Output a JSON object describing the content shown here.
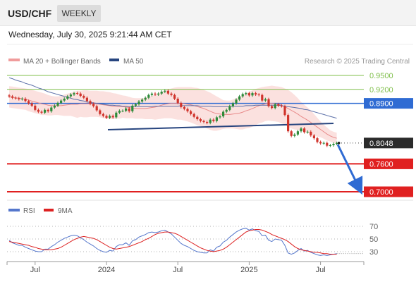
{
  "header": {
    "symbol": "USD/CHF",
    "timeframe": "WEEKLY",
    "datetime": "Wednesday, July 30, 2025 9:21:44 AM CET"
  },
  "legend": {
    "bollinger": "MA 20 + Bollinger Bands",
    "ma50": "MA 50",
    "credit": "Research © 2025 Trading Central"
  },
  "levels": [
    {
      "value": 0.95,
      "label": "0.9500",
      "style": "resistance-green"
    },
    {
      "value": 0.92,
      "label": "0.9200",
      "style": "resistance-green"
    },
    {
      "value": 0.89,
      "label": "0.8900",
      "style": "pivot-blue"
    },
    {
      "value": 0.8048,
      "label": "0.8048",
      "style": "last-price"
    },
    {
      "value": 0.76,
      "label": "0.7600",
      "style": "support-red"
    },
    {
      "value": 0.7,
      "label": "0.7000",
      "style": "support-red"
    }
  ],
  "rsi_legend": {
    "rsi": "RSI",
    "ma": "9MA"
  },
  "rsi_levels": [
    {
      "value": 70,
      "label": "70"
    },
    {
      "value": 50,
      "label": "50"
    },
    {
      "value": 30,
      "label": "30"
    }
  ],
  "x_labels": [
    "Jul",
    "2024",
    "Jul",
    "2025",
    "Jul"
  ],
  "colors": {
    "up": "#2e8b3a",
    "down": "#d0342c",
    "ma20": "#e88a8a",
    "band": "#f7c9c4",
    "ma50": "#5b6fa8",
    "green": "#7fbf4a",
    "blue": "#2f6bd3",
    "red": "#e02020",
    "trend": "#27457f",
    "rsi": "#5577cc",
    "rsi_ma": "#dd2222"
  },
  "chart_data": {
    "type": "candlestick",
    "timeframe": "weekly",
    "symbol": "USD/CHF",
    "ylim": [
      0.7,
      0.96
    ],
    "last_price": 0.8048,
    "x_ticks": [
      "Jul",
      "2024",
      "Jul",
      "2025",
      "Jul"
    ],
    "close": [
      0.905,
      0.902,
      0.901,
      0.899,
      0.9,
      0.895,
      0.89,
      0.885,
      0.876,
      0.872,
      0.87,
      0.876,
      0.873,
      0.881,
      0.885,
      0.891,
      0.896,
      0.9,
      0.905,
      0.909,
      0.912,
      0.911,
      0.906,
      0.902,
      0.895,
      0.889,
      0.884,
      0.875,
      0.867,
      0.863,
      0.859,
      0.863,
      0.86,
      0.87,
      0.874,
      0.874,
      0.879,
      0.873,
      0.885,
      0.888,
      0.894,
      0.898,
      0.902,
      0.908,
      0.911,
      0.909,
      0.911,
      0.915,
      0.917,
      0.911,
      0.908,
      0.9,
      0.891,
      0.882,
      0.878,
      0.873,
      0.867,
      0.861,
      0.856,
      0.852,
      0.85,
      0.848,
      0.855,
      0.852,
      0.86,
      0.862,
      0.872,
      0.876,
      0.884,
      0.89,
      0.898,
      0.905,
      0.91,
      0.912,
      0.907,
      0.912,
      0.909,
      0.908,
      0.896,
      0.899,
      0.884,
      0.88,
      0.888,
      0.885,
      0.884,
      0.865,
      0.83,
      0.82,
      0.823,
      0.83,
      0.836,
      0.828,
      0.829,
      0.821,
      0.815,
      0.807,
      0.804,
      0.805,
      0.799,
      0.8,
      0.803,
      0.8048
    ],
    "ma20": [
      0.904,
      0.903,
      0.902,
      0.901,
      0.9,
      0.899,
      0.897,
      0.895,
      0.893,
      0.891,
      0.889,
      0.888,
      0.886,
      0.885,
      0.885,
      0.885,
      0.885,
      0.886,
      0.887,
      0.888,
      0.888,
      0.888,
      0.889,
      0.889,
      0.889,
      0.889,
      0.889,
      0.889,
      0.888,
      0.887,
      0.886,
      0.885,
      0.884,
      0.884,
      0.883,
      0.883,
      0.882,
      0.881,
      0.88,
      0.879,
      0.879,
      0.879,
      0.879,
      0.88,
      0.881,
      0.882,
      0.884,
      0.886,
      0.888,
      0.889,
      0.89,
      0.89,
      0.89,
      0.89,
      0.889,
      0.888,
      0.887,
      0.885,
      0.883,
      0.881,
      0.879,
      0.876,
      0.873,
      0.87,
      0.868,
      0.867,
      0.866,
      0.866,
      0.866,
      0.867,
      0.868,
      0.869,
      0.871,
      0.874,
      0.876,
      0.879,
      0.882,
      0.885,
      0.887,
      0.889,
      0.89,
      0.89,
      0.889,
      0.888,
      0.886,
      0.883,
      0.879,
      0.875,
      0.871,
      0.867,
      0.862,
      0.858,
      0.854,
      0.849,
      0.844,
      0.839,
      0.834,
      0.829,
      0.824,
      0.82,
      0.817,
      0.815
    ],
    "bb_upper": [
      0.927,
      0.926,
      0.925,
      0.924,
      0.923,
      0.922,
      0.921,
      0.919,
      0.917,
      0.915,
      0.913,
      0.911,
      0.908,
      0.906,
      0.905,
      0.905,
      0.906,
      0.909,
      0.911,
      0.913,
      0.915,
      0.917,
      0.917,
      0.918,
      0.918,
      0.917,
      0.917,
      0.917,
      0.916,
      0.916,
      0.915,
      0.914,
      0.912,
      0.911,
      0.909,
      0.907,
      0.906,
      0.904,
      0.902,
      0.901,
      0.901,
      0.901,
      0.902,
      0.904,
      0.906,
      0.909,
      0.912,
      0.915,
      0.918,
      0.92,
      0.922,
      0.924,
      0.925,
      0.925,
      0.925,
      0.925,
      0.925,
      0.924,
      0.923,
      0.921,
      0.919,
      0.916,
      0.913,
      0.909,
      0.905,
      0.901,
      0.897,
      0.896,
      0.896,
      0.898,
      0.901,
      0.904,
      0.908,
      0.912,
      0.915,
      0.918,
      0.921,
      0.923,
      0.925,
      0.926,
      0.927,
      0.928,
      0.927,
      0.926,
      0.925,
      0.922,
      0.919,
      0.914,
      0.908,
      0.901,
      0.893,
      0.887,
      0.881,
      0.875,
      0.867,
      0.859,
      0.851,
      0.844,
      0.838,
      0.832,
      0.829,
      0.827
    ],
    "bb_lower": [
      0.881,
      0.88,
      0.879,
      0.878,
      0.877,
      0.876,
      0.873,
      0.871,
      0.869,
      0.867,
      0.865,
      0.865,
      0.864,
      0.864,
      0.865,
      0.865,
      0.864,
      0.863,
      0.863,
      0.863,
      0.861,
      0.859,
      0.861,
      0.86,
      0.86,
      0.861,
      0.861,
      0.861,
      0.86,
      0.858,
      0.857,
      0.856,
      0.856,
      0.857,
      0.857,
      0.859,
      0.858,
      0.858,
      0.858,
      0.857,
      0.857,
      0.857,
      0.856,
      0.856,
      0.856,
      0.855,
      0.856,
      0.857,
      0.858,
      0.858,
      0.858,
      0.856,
      0.855,
      0.855,
      0.853,
      0.851,
      0.849,
      0.846,
      0.843,
      0.841,
      0.839,
      0.836,
      0.833,
      0.831,
      0.831,
      0.833,
      0.835,
      0.836,
      0.836,
      0.836,
      0.835,
      0.834,
      0.834,
      0.836,
      0.837,
      0.84,
      0.843,
      0.847,
      0.849,
      0.852,
      0.853,
      0.852,
      0.851,
      0.85,
      0.847,
      0.844,
      0.839,
      0.836,
      0.834,
      0.833,
      0.831,
      0.829,
      0.827,
      0.823,
      0.821,
      0.819,
      0.817,
      0.814,
      0.81,
      0.808,
      0.805,
      0.803
    ],
    "ma50": [
      0.945,
      0.943,
      0.94,
      0.938,
      0.936,
      0.933,
      0.931,
      0.929,
      0.926,
      0.923,
      0.921,
      0.918,
      0.915,
      0.913,
      0.911,
      0.909,
      0.907,
      0.905,
      0.903,
      0.901,
      0.899,
      0.898,
      0.896,
      0.895,
      0.893,
      0.892,
      0.891,
      0.89,
      0.889,
      0.888,
      0.887,
      0.886,
      0.886,
      0.885,
      0.885,
      0.884,
      0.884,
      0.883,
      0.883,
      0.883,
      0.883,
      0.883,
      0.883,
      0.883,
      0.883,
      0.884,
      0.884,
      0.884,
      0.884,
      0.884,
      0.884,
      0.884,
      0.884,
      0.885,
      0.885,
      0.885,
      0.885,
      0.885,
      0.885,
      0.884,
      0.884,
      0.884,
      0.884,
      0.883,
      0.883,
      0.883,
      0.883,
      0.883,
      0.883,
      0.884,
      0.884,
      0.884,
      0.884,
      0.885,
      0.885,
      0.885,
      0.886,
      0.886,
      0.886,
      0.886,
      0.886,
      0.886,
      0.886,
      0.886,
      0.885,
      0.884,
      0.883,
      0.882,
      0.881,
      0.88,
      0.879,
      0.877,
      0.876,
      0.874,
      0.872,
      0.87,
      0.868,
      0.866,
      0.864,
      0.862,
      0.86,
      0.858
    ],
    "rsi_ylim": [
      20,
      80
    ],
    "rsi": [
      48,
      44,
      42,
      40,
      40,
      37,
      35,
      33,
      31,
      30,
      30,
      34,
      34,
      38,
      41,
      45,
      48,
      51,
      53,
      55,
      56,
      55,
      52,
      49,
      45,
      42,
      39,
      35,
      32,
      30,
      29,
      32,
      31,
      38,
      41,
      41,
      44,
      40,
      47,
      49,
      53,
      55,
      57,
      60,
      61,
      60,
      61,
      63,
      64,
      61,
      58,
      53,
      48,
      43,
      40,
      38,
      35,
      32,
      30,
      29,
      28,
      28,
      33,
      31,
      37,
      39,
      45,
      48,
      53,
      57,
      61,
      64,
      66,
      67,
      64,
      66,
      63,
      62,
      55,
      56,
      48,
      46,
      50,
      49,
      48,
      40,
      28,
      26,
      28,
      32,
      35,
      31,
      32,
      29,
      27,
      25,
      24,
      25,
      24,
      25,
      26,
      27
    ],
    "rsi_ma": [
      46,
      45,
      44,
      43,
      42,
      41,
      40,
      38,
      37,
      35,
      34,
      33,
      33,
      33,
      34,
      35,
      37,
      40,
      43,
      46,
      49,
      51,
      53,
      54,
      53,
      52,
      51,
      49,
      46,
      43,
      40,
      37,
      35,
      34,
      35,
      36,
      37,
      38,
      40,
      42,
      44,
      46,
      49,
      51,
      54,
      57,
      59,
      60,
      61,
      61,
      60,
      59,
      57,
      54,
      51,
      48,
      45,
      42,
      39,
      36,
      34,
      32,
      31,
      30,
      31,
      32,
      34,
      37,
      41,
      45,
      49,
      53,
      57,
      61,
      63,
      64,
      65,
      65,
      64,
      62,
      60,
      57,
      55,
      53,
      51,
      49,
      46,
      42,
      38,
      35,
      33,
      32,
      31,
      30,
      29,
      29,
      28,
      27,
      27,
      26,
      26,
      26
    ]
  }
}
